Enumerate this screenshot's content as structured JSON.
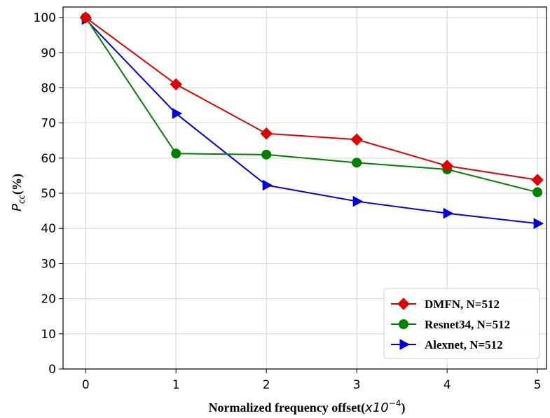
{
  "chart_data": {
    "type": "line",
    "xlabel": "Normalized frequency offset(x10⁻⁴)",
    "xlabel_prefix": "Normalized frequency offset(",
    "xlabel_math": "x10",
    "xlabel_exp": "−4",
    "xlabel_suffix": ")",
    "ylabel_main": "P",
    "ylabel_sub": "cc",
    "ylabel_suffix": "(%)",
    "x": [
      0,
      1,
      2,
      3,
      4,
      5
    ],
    "x_ticks": [
      "0",
      "1",
      "2",
      "3",
      "4",
      "5"
    ],
    "y_ticks": [
      "0",
      "10",
      "20",
      "30",
      "40",
      "50",
      "60",
      "70",
      "80",
      "90",
      "100"
    ],
    "xlim": [
      -0.25,
      5.1
    ],
    "ylim": [
      0,
      103
    ],
    "grid": true,
    "legend_position": "bottom-right",
    "series": [
      {
        "name": "DMFN, N=512",
        "marker": "diamond",
        "color": "#e00000",
        "values": [
          100,
          81,
          67,
          65.3,
          57.8,
          53.8
        ]
      },
      {
        "name": "Resnet34, N=512",
        "marker": "circle",
        "color": "#008000",
        "values": [
          100,
          61.3,
          61,
          58.7,
          56.8,
          50.3
        ]
      },
      {
        "name": "Alexnet, N=512",
        "marker": "triangle-right",
        "color": "#0000e0",
        "values": [
          99.5,
          72.7,
          52.3,
          47.7,
          44.3,
          41.4
        ]
      }
    ]
  }
}
